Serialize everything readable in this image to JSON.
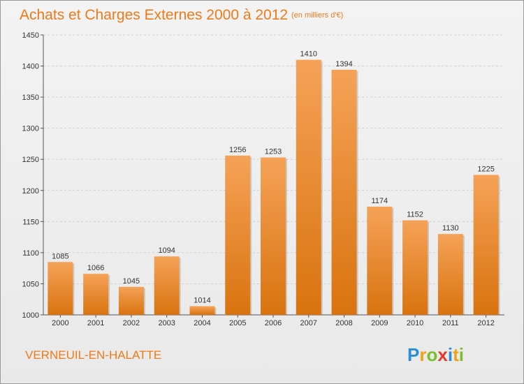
{
  "header": {
    "title": "Achats et Charges Externes 2000 à 2012",
    "subtitle": "(en milliers d'€)"
  },
  "footer": {
    "town": "VERNEUIL-EN-HALATTE",
    "brand_letters": [
      {
        "ch": "P",
        "color": "#2a8fd6"
      },
      {
        "ch": "r",
        "color": "#f0a11a"
      },
      {
        "ch": "o",
        "color": "#7cbf2e"
      },
      {
        "ch": "x",
        "color": "#e53a2b"
      },
      {
        "ch": "i",
        "color": "#2a8fd6"
      },
      {
        "ch": "t",
        "color": "#f0a11a"
      },
      {
        "ch": "i",
        "color": "#7cbf2e"
      }
    ]
  },
  "colors": {
    "bar_top": "#f5a257",
    "bar_bottom": "#d9730f",
    "grid": "#cfcfcf",
    "axis": "#555555"
  },
  "chart_data": {
    "type": "bar",
    "categories": [
      "2000",
      "2001",
      "2002",
      "2003",
      "2004",
      "2005",
      "2006",
      "2007",
      "2008",
      "2009",
      "2010",
      "2011",
      "2012"
    ],
    "values": [
      1085,
      1066,
      1045,
      1094,
      1014,
      1256,
      1253,
      1410,
      1394,
      1174,
      1152,
      1130,
      1225
    ],
    "ylim": [
      1000,
      1450
    ],
    "yticks": [
      1000,
      1050,
      1100,
      1150,
      1200,
      1250,
      1300,
      1350,
      1400,
      1450
    ],
    "grid": true
  }
}
